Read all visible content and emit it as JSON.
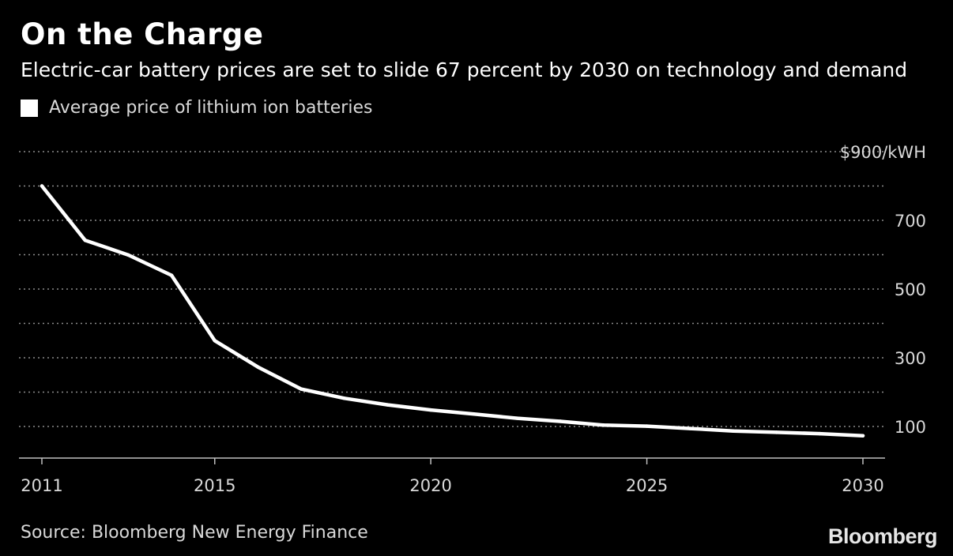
{
  "header": {
    "title": "On the Charge",
    "subtitle": "Electric-car battery prices are set to slide 67 percent by 2030 on technology and demand"
  },
  "footer": {
    "source": "Source: Bloomberg New Energy Finance",
    "brand": "Bloomberg"
  },
  "colors": {
    "background": "#000000",
    "line": "#ffffff",
    "grid": "#8c8c8c",
    "text": "#d9d9d9"
  },
  "chart_data": {
    "type": "line",
    "title": "On the Charge",
    "subtitle": "Electric-car battery prices are set to slide 67 percent by 2030 on technology and demand",
    "xlabel": "",
    "ylabel": "$/kWH",
    "legend": "top-left",
    "grid": true,
    "xlim": [
      2011,
      2030
    ],
    "ylim": [
      0,
      900
    ],
    "x_ticks": [
      2011,
      2015,
      2020,
      2025,
      2030
    ],
    "y_ticks": [
      {
        "value": 900,
        "label": "$900/kWH"
      },
      {
        "value": 700,
        "label": "700"
      },
      {
        "value": 500,
        "label": "500"
      },
      {
        "value": 300,
        "label": "300"
      },
      {
        "value": 100,
        "label": "100"
      }
    ],
    "gridlines": [
      900,
      800,
      700,
      600,
      500,
      400,
      300,
      200,
      100
    ],
    "series": [
      {
        "name": "Average price of lithium ion batteries",
        "x": [
          2011,
          2012,
          2013,
          2014,
          2015,
          2016,
          2017,
          2018,
          2019,
          2020,
          2021,
          2022,
          2023,
          2024,
          2025,
          2026,
          2027,
          2028,
          2029,
          2030
        ],
        "values": [
          800,
          642,
          599,
          540,
          350,
          273,
          209,
          182,
          163,
          148,
          136,
          124,
          115,
          104,
          101,
          94,
          87,
          83,
          79,
          73
        ]
      }
    ]
  }
}
